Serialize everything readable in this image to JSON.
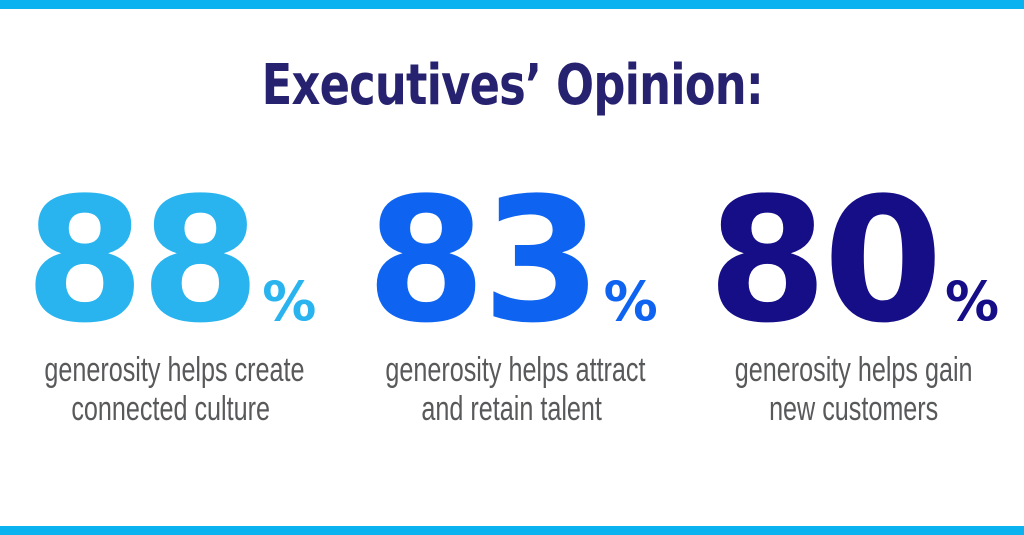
{
  "accent": {
    "bar_color": "#0ab2f0"
  },
  "header": {
    "title": "Executives’ Opinion:",
    "color": "#26226f"
  },
  "caption_color": "#58595b",
  "stats": [
    {
      "value": "88",
      "unit": "%",
      "color": "#29b4ef",
      "caption": [
        "generosity helps create",
        "connected culture"
      ]
    },
    {
      "value": "83",
      "unit": "%",
      "color": "#0e64f1",
      "caption": [
        "generosity helps attract",
        "and retain talent"
      ]
    },
    {
      "value": "80",
      "unit": "%",
      "color": "#150e87",
      "caption": [
        "generosity helps gain",
        "new customers"
      ]
    }
  ],
  "chart_data": {
    "type": "table",
    "title": "Executives’ Opinion:",
    "categories": [
      "generosity helps create connected culture",
      "generosity helps attract and retain talent",
      "generosity helps gain new customers"
    ],
    "values": [
      88,
      83,
      80
    ],
    "unit": "%"
  }
}
